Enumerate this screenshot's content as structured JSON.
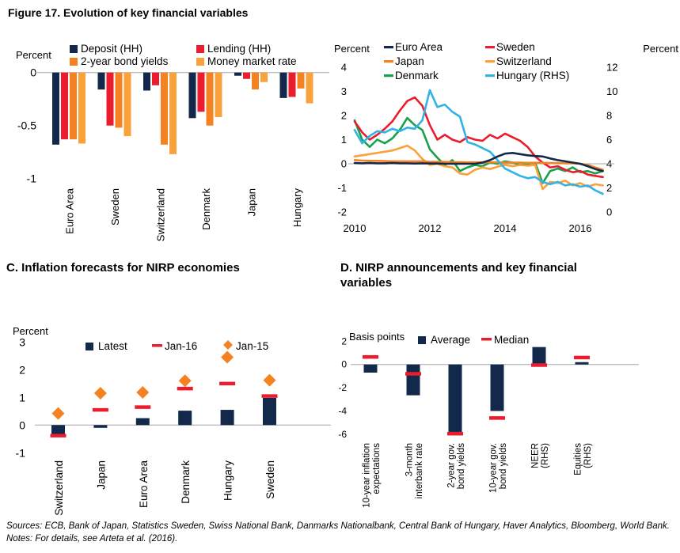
{
  "figure": {
    "title": "Figure 17. Evolution of key financial variables"
  },
  "panels": {
    "c_title": "C. Inflation forecasts for NIRP economies",
    "d_title": "D. NIRP announcements and key financial variables"
  },
  "source_note": "Sources: ECB, Bank of Japan, Statistics Sweden, Swiss National Bank, Danmarks Nationalbank, Central Bank of Hungary, Haver Analytics, Bloomberg, World Bank. Notes: For details, see Arteta et al. (2016).",
  "colors": {
    "navy": "#13294b",
    "red": "#ea1c2d",
    "orange": "#f58220",
    "amber": "#f9a13a",
    "green": "#16a24b",
    "cyan": "#33b3e5",
    "gray_line": "#a6a6a6"
  },
  "chart_data": [
    {
      "id": "panel_a",
      "type": "bar",
      "ylabel": "Percent",
      "yticks": [
        0,
        -0.5,
        -1
      ],
      "ylim": [
        -1,
        0.3
      ],
      "grid": false,
      "legend_position": "top",
      "categories": [
        "Euro Area",
        "Sweden",
        "Switzerland",
        "Denmark",
        "Japan",
        "Hungary"
      ],
      "series": [
        {
          "name": "Deposit (HH)",
          "color": "navy",
          "values": [
            -0.68,
            -0.16,
            -0.17,
            -0.43,
            -0.03,
            -0.24
          ]
        },
        {
          "name": "Lending (HH)",
          "color": "red",
          "values": [
            -0.63,
            -0.5,
            -0.12,
            -0.37,
            -0.06,
            -0.23
          ]
        },
        {
          "name": "2-year bond yields",
          "color": "orange",
          "values": [
            -0.63,
            -0.52,
            -0.68,
            -0.5,
            -0.16,
            -0.15
          ]
        },
        {
          "name": "Money market rate",
          "color": "amber",
          "values": [
            -0.67,
            -0.6,
            -0.77,
            -0.42,
            -0.09,
            -0.29
          ]
        }
      ]
    },
    {
      "id": "panel_b",
      "type": "line",
      "ylabel_left": "Percent",
      "ylabel_right": "Percent",
      "yticks_left": [
        4,
        3,
        2,
        1,
        0,
        -1,
        -2
      ],
      "yticks_right": [
        12,
        10,
        8,
        6,
        4,
        2,
        0
      ],
      "ylim_left": [
        -2,
        4
      ],
      "ylim_right": [
        0,
        12
      ],
      "xticks": [
        2010,
        2012,
        2014,
        2016
      ],
      "x_start": 2010.0,
      "x_step": 0.2,
      "grid": false,
      "legend_position": "top",
      "series": [
        {
          "name": "Euro Area",
          "color": "navy",
          "axis": "left",
          "values": [
            0.03,
            0.02,
            0.03,
            0.02,
            0.02,
            0.03,
            0.02,
            0.02,
            0.01,
            0.02,
            0.01,
            0.01,
            0,
            0,
            0,
            0,
            0,
            0.05,
            0.15,
            0.3,
            0.42,
            0.45,
            0.4,
            0.35,
            0.32,
            0.3,
            0.22,
            0.15,
            0.1,
            0.05,
            0,
            -0.1,
            -0.22,
            -0.3
          ]
        },
        {
          "name": "Japan",
          "color": "orange",
          "axis": "left",
          "values": [
            0.15,
            0.13,
            0.12,
            0.12,
            0.11,
            0.1,
            0.1,
            0.1,
            0.1,
            0.1,
            0.08,
            0.08,
            0.08,
            0.07,
            0.07,
            0.06,
            0.06,
            0.06,
            0.06,
            0.06,
            0.05,
            0.05,
            0.05,
            0.04,
            0.04,
            0.04,
            0.03,
            0.03,
            0.02,
            0.02,
            0,
            -0.05,
            -0.15,
            -0.25
          ]
        },
        {
          "name": "Denmark",
          "color": "green",
          "axis": "left",
          "values": [
            1.8,
            1.0,
            0.7,
            1.0,
            0.85,
            1.05,
            1.4,
            1.9,
            1.6,
            1.4,
            0.6,
            0.25,
            -0.05,
            0.15,
            -0.3,
            -0.15,
            -0.05,
            -0.1,
            0.05,
            0,
            0.1,
            0.05,
            -0.05,
            0,
            0.05,
            -0.8,
            -0.3,
            -0.2,
            -0.3,
            -0.15,
            -0.35,
            -0.3,
            -0.4,
            -0.3
          ]
        },
        {
          "name": "Sweden",
          "color": "red",
          "axis": "left",
          "values": [
            1.75,
            1.3,
            1.0,
            1.2,
            1.45,
            1.75,
            2.2,
            2.6,
            2.75,
            2.4,
            1.6,
            1.0,
            1.2,
            1.0,
            0.9,
            1.1,
            1.0,
            0.95,
            1.2,
            1.05,
            1.25,
            1.1,
            0.95,
            0.7,
            0.3,
            0.05,
            -0.15,
            -0.1,
            -0.25,
            -0.35,
            -0.3,
            -0.45,
            -0.5,
            -0.55
          ]
        },
        {
          "name": "Switzerland",
          "color": "amber",
          "axis": "left",
          "values": [
            0.3,
            0.35,
            0.4,
            0.45,
            0.5,
            0.55,
            0.65,
            0.75,
            0.55,
            0.2,
            -0.05,
            0,
            -0.1,
            -0.15,
            -0.4,
            -0.45,
            -0.25,
            -0.15,
            -0.22,
            -0.12,
            -0.05,
            -0.1,
            -0.05,
            -0.08,
            -0.05,
            -1.05,
            -0.75,
            -0.8,
            -0.7,
            -0.9,
            -0.8,
            -0.95,
            -0.85,
            -0.9
          ]
        },
        {
          "name": "Hungary (RHS)",
          "color": "cyan",
          "axis": "right",
          "values": [
            6.8,
            5.7,
            6.3,
            6.7,
            6.6,
            6.9,
            6.7,
            7.0,
            6.9,
            7.6,
            10.1,
            8.7,
            8.9,
            8.3,
            7.9,
            5.8,
            5.6,
            5.3,
            5.0,
            4.3,
            3.6,
            3.3,
            3.0,
            2.8,
            2.9,
            2.5,
            2.3,
            2.5,
            2.2,
            2.3,
            2.1,
            2.2,
            1.8,
            1.5
          ]
        }
      ]
    },
    {
      "id": "panel_c",
      "type": "bar",
      "ylabel": "Percent",
      "yticks": [
        3,
        2,
        1,
        0,
        -1
      ],
      "ylim": [
        -1,
        3
      ],
      "grid": false,
      "legend_position": "top",
      "categories": [
        "Switzerland",
        "Japan",
        "Euro Area",
        "Denmark",
        "Hungary",
        "Sweden"
      ],
      "series": [
        {
          "name": "Latest",
          "color": "navy",
          "marker": "bar",
          "values": [
            -0.43,
            -0.1,
            0.25,
            0.52,
            0.55,
            0.98
          ]
        },
        {
          "name": "Jan-16",
          "color": "red",
          "marker": "dash",
          "values": [
            -0.38,
            0.55,
            0.65,
            1.32,
            1.5,
            1.05
          ]
        },
        {
          "name": "Jan-15",
          "color": "orange",
          "marker": "diamond",
          "values": [
            0.42,
            1.15,
            1.18,
            1.6,
            2.45,
            1.62
          ]
        }
      ]
    },
    {
      "id": "panel_d",
      "type": "bar",
      "ylabel": "Basis points",
      "yticks": [
        2,
        0,
        -2,
        -4,
        -6
      ],
      "ylim": [
        -6,
        2
      ],
      "grid": false,
      "legend_position": "top",
      "categories": [
        "10-year inflation\nexpectations",
        "3-month\ninterbank rate",
        "2-year gov.\nbond yields",
        "10-year gov.\nbond yields",
        "NEER\n(RHS)",
        "Equities\n(RHS)"
      ],
      "series": [
        {
          "name": "Average",
          "color": "navy",
          "marker": "bar",
          "values": [
            -0.7,
            -2.65,
            -5.8,
            -4.0,
            1.5,
            0.2
          ]
        },
        {
          "name": "Median",
          "color": "red",
          "marker": "dash",
          "values": [
            0.65,
            -0.8,
            -5.95,
            -4.6,
            -0.05,
            0.6
          ]
        }
      ]
    }
  ]
}
